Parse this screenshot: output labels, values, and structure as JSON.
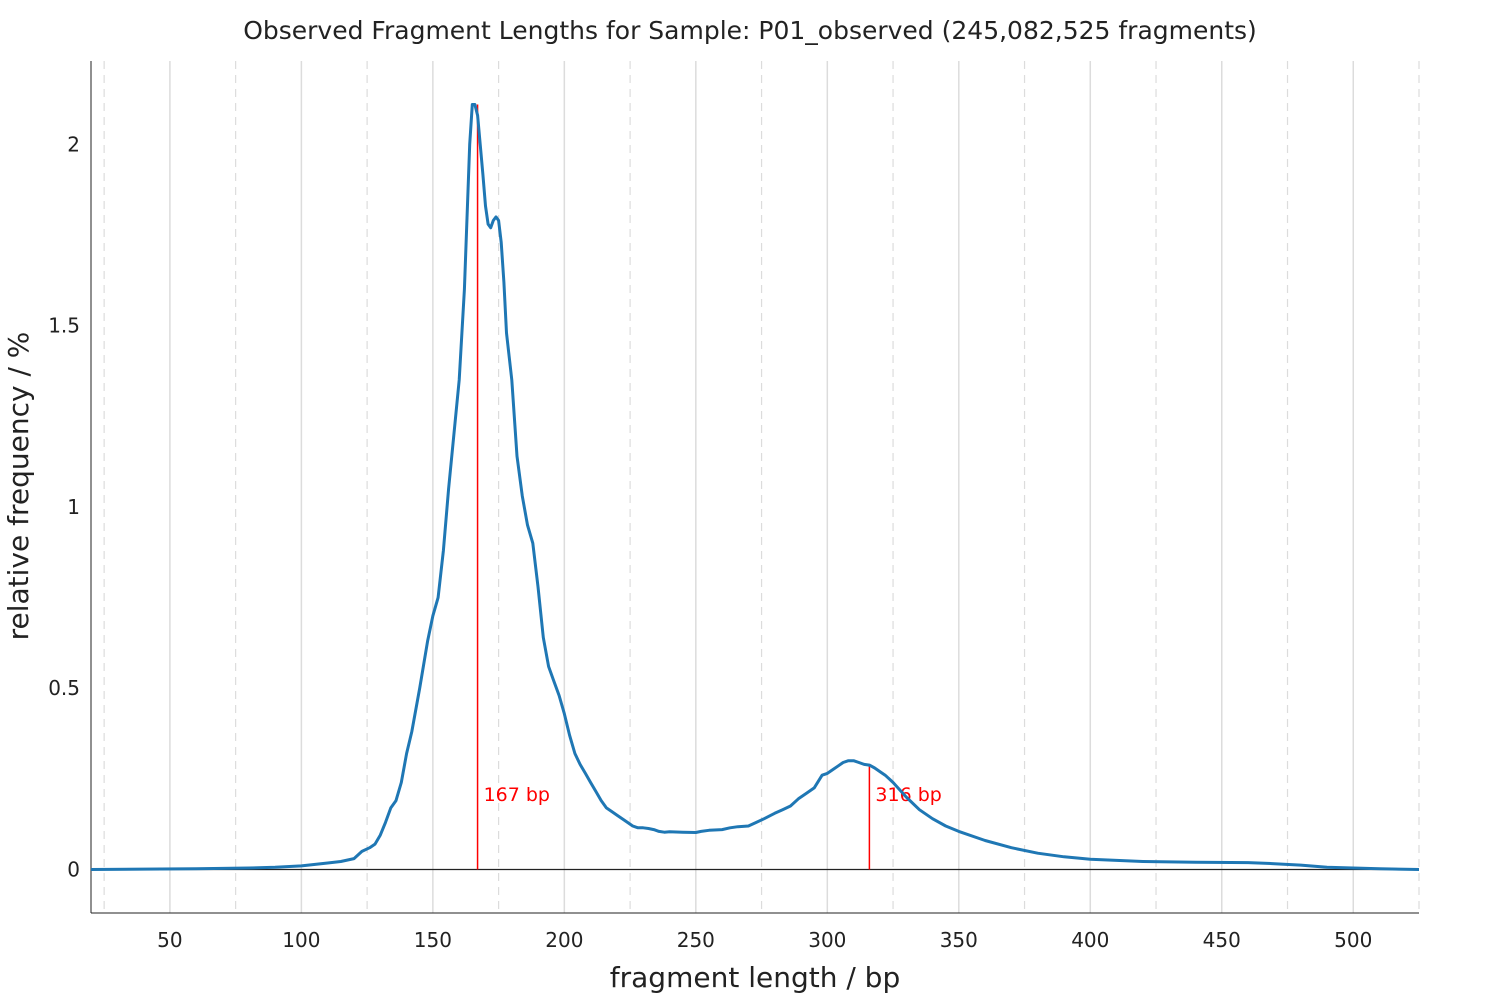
{
  "chart_data": {
    "type": "line",
    "title": "Observed Fragment Lengths for Sample: P01_observed (245,082,525 fragments)",
    "xlabel": "fragment length / bp",
    "ylabel": "relative frequency / %",
    "xlim": [
      20,
      525
    ],
    "ylim": [
      -0.12,
      2.23
    ],
    "x_ticks": [
      50,
      100,
      150,
      200,
      250,
      300,
      350,
      400,
      450,
      500
    ],
    "x_tick_labels": [
      "50",
      "100",
      "150",
      "200",
      "250",
      "300",
      "350",
      "400",
      "450",
      "500"
    ],
    "x_minor_ticks": [
      25,
      75,
      125,
      175,
      225,
      275,
      325,
      375,
      425,
      475,
      525
    ],
    "y_ticks": [
      0,
      0.5,
      1,
      1.5,
      2
    ],
    "y_tick_labels": [
      "0",
      "0.5",
      "1",
      "1.5",
      "2"
    ],
    "grid": true,
    "series_color": "#1f77b4",
    "annotation_color": "#ff0000",
    "annotations": [
      {
        "x": 167,
        "y": 2.11,
        "label": "167 bp"
      },
      {
        "x": 316,
        "y": 0.29,
        "label": "316 bp"
      }
    ],
    "series": [
      {
        "x": [
          20,
          40,
          60,
          80,
          90,
          100,
          110,
          115,
          120,
          123,
          126,
          128,
          130,
          132,
          134,
          136,
          138,
          140,
          142,
          145,
          148,
          150,
          152,
          154,
          156,
          158,
          160,
          162,
          164,
          165,
          166,
          167,
          168,
          169,
          170,
          171,
          172,
          173,
          174,
          175,
          176,
          177,
          178,
          180,
          182,
          184,
          186,
          188,
          190,
          192,
          194,
          196,
          198,
          200,
          202,
          204,
          206,
          208,
          210,
          212,
          214,
          216,
          218,
          220,
          222,
          224,
          226,
          228,
          230,
          232,
          234,
          236,
          238,
          240,
          245,
          250,
          252,
          255,
          260,
          263,
          266,
          270,
          273,
          276,
          280,
          283,
          286,
          289,
          292,
          295,
          298,
          300,
          302,
          304,
          306,
          308,
          310,
          312,
          314,
          316,
          318,
          320,
          322,
          325,
          330,
          335,
          340,
          345,
          350,
          360,
          370,
          380,
          390,
          400,
          410,
          420,
          440,
          460,
          470,
          480,
          490,
          500,
          510,
          525
        ],
        "y": [
          0,
          0.001,
          0.002,
          0.004,
          0.006,
          0.01,
          0.018,
          0.022,
          0.03,
          0.05,
          0.06,
          0.07,
          0.095,
          0.13,
          0.17,
          0.19,
          0.24,
          0.32,
          0.38,
          0.5,
          0.63,
          0.7,
          0.75,
          0.88,
          1.05,
          1.2,
          1.35,
          1.6,
          2.0,
          2.11,
          2.11,
          2.08,
          2.0,
          1.92,
          1.83,
          1.78,
          1.77,
          1.79,
          1.8,
          1.79,
          1.73,
          1.62,
          1.48,
          1.35,
          1.14,
          1.03,
          0.95,
          0.9,
          0.78,
          0.64,
          0.56,
          0.52,
          0.48,
          0.43,
          0.37,
          0.32,
          0.29,
          0.265,
          0.24,
          0.215,
          0.19,
          0.17,
          0.16,
          0.15,
          0.14,
          0.13,
          0.12,
          0.115,
          0.115,
          0.113,
          0.11,
          0.105,
          0.103,
          0.104,
          0.103,
          0.102,
          0.105,
          0.108,
          0.11,
          0.115,
          0.118,
          0.12,
          0.13,
          0.14,
          0.155,
          0.165,
          0.175,
          0.195,
          0.21,
          0.225,
          0.26,
          0.265,
          0.275,
          0.285,
          0.295,
          0.3,
          0.3,
          0.295,
          0.29,
          0.288,
          0.28,
          0.27,
          0.26,
          0.24,
          0.2,
          0.165,
          0.14,
          0.12,
          0.105,
          0.08,
          0.06,
          0.045,
          0.035,
          0.028,
          0.025,
          0.022,
          0.02,
          0.019,
          0.016,
          0.012,
          0.006,
          0.004,
          0.002,
          0.0
        ]
      }
    ]
  }
}
